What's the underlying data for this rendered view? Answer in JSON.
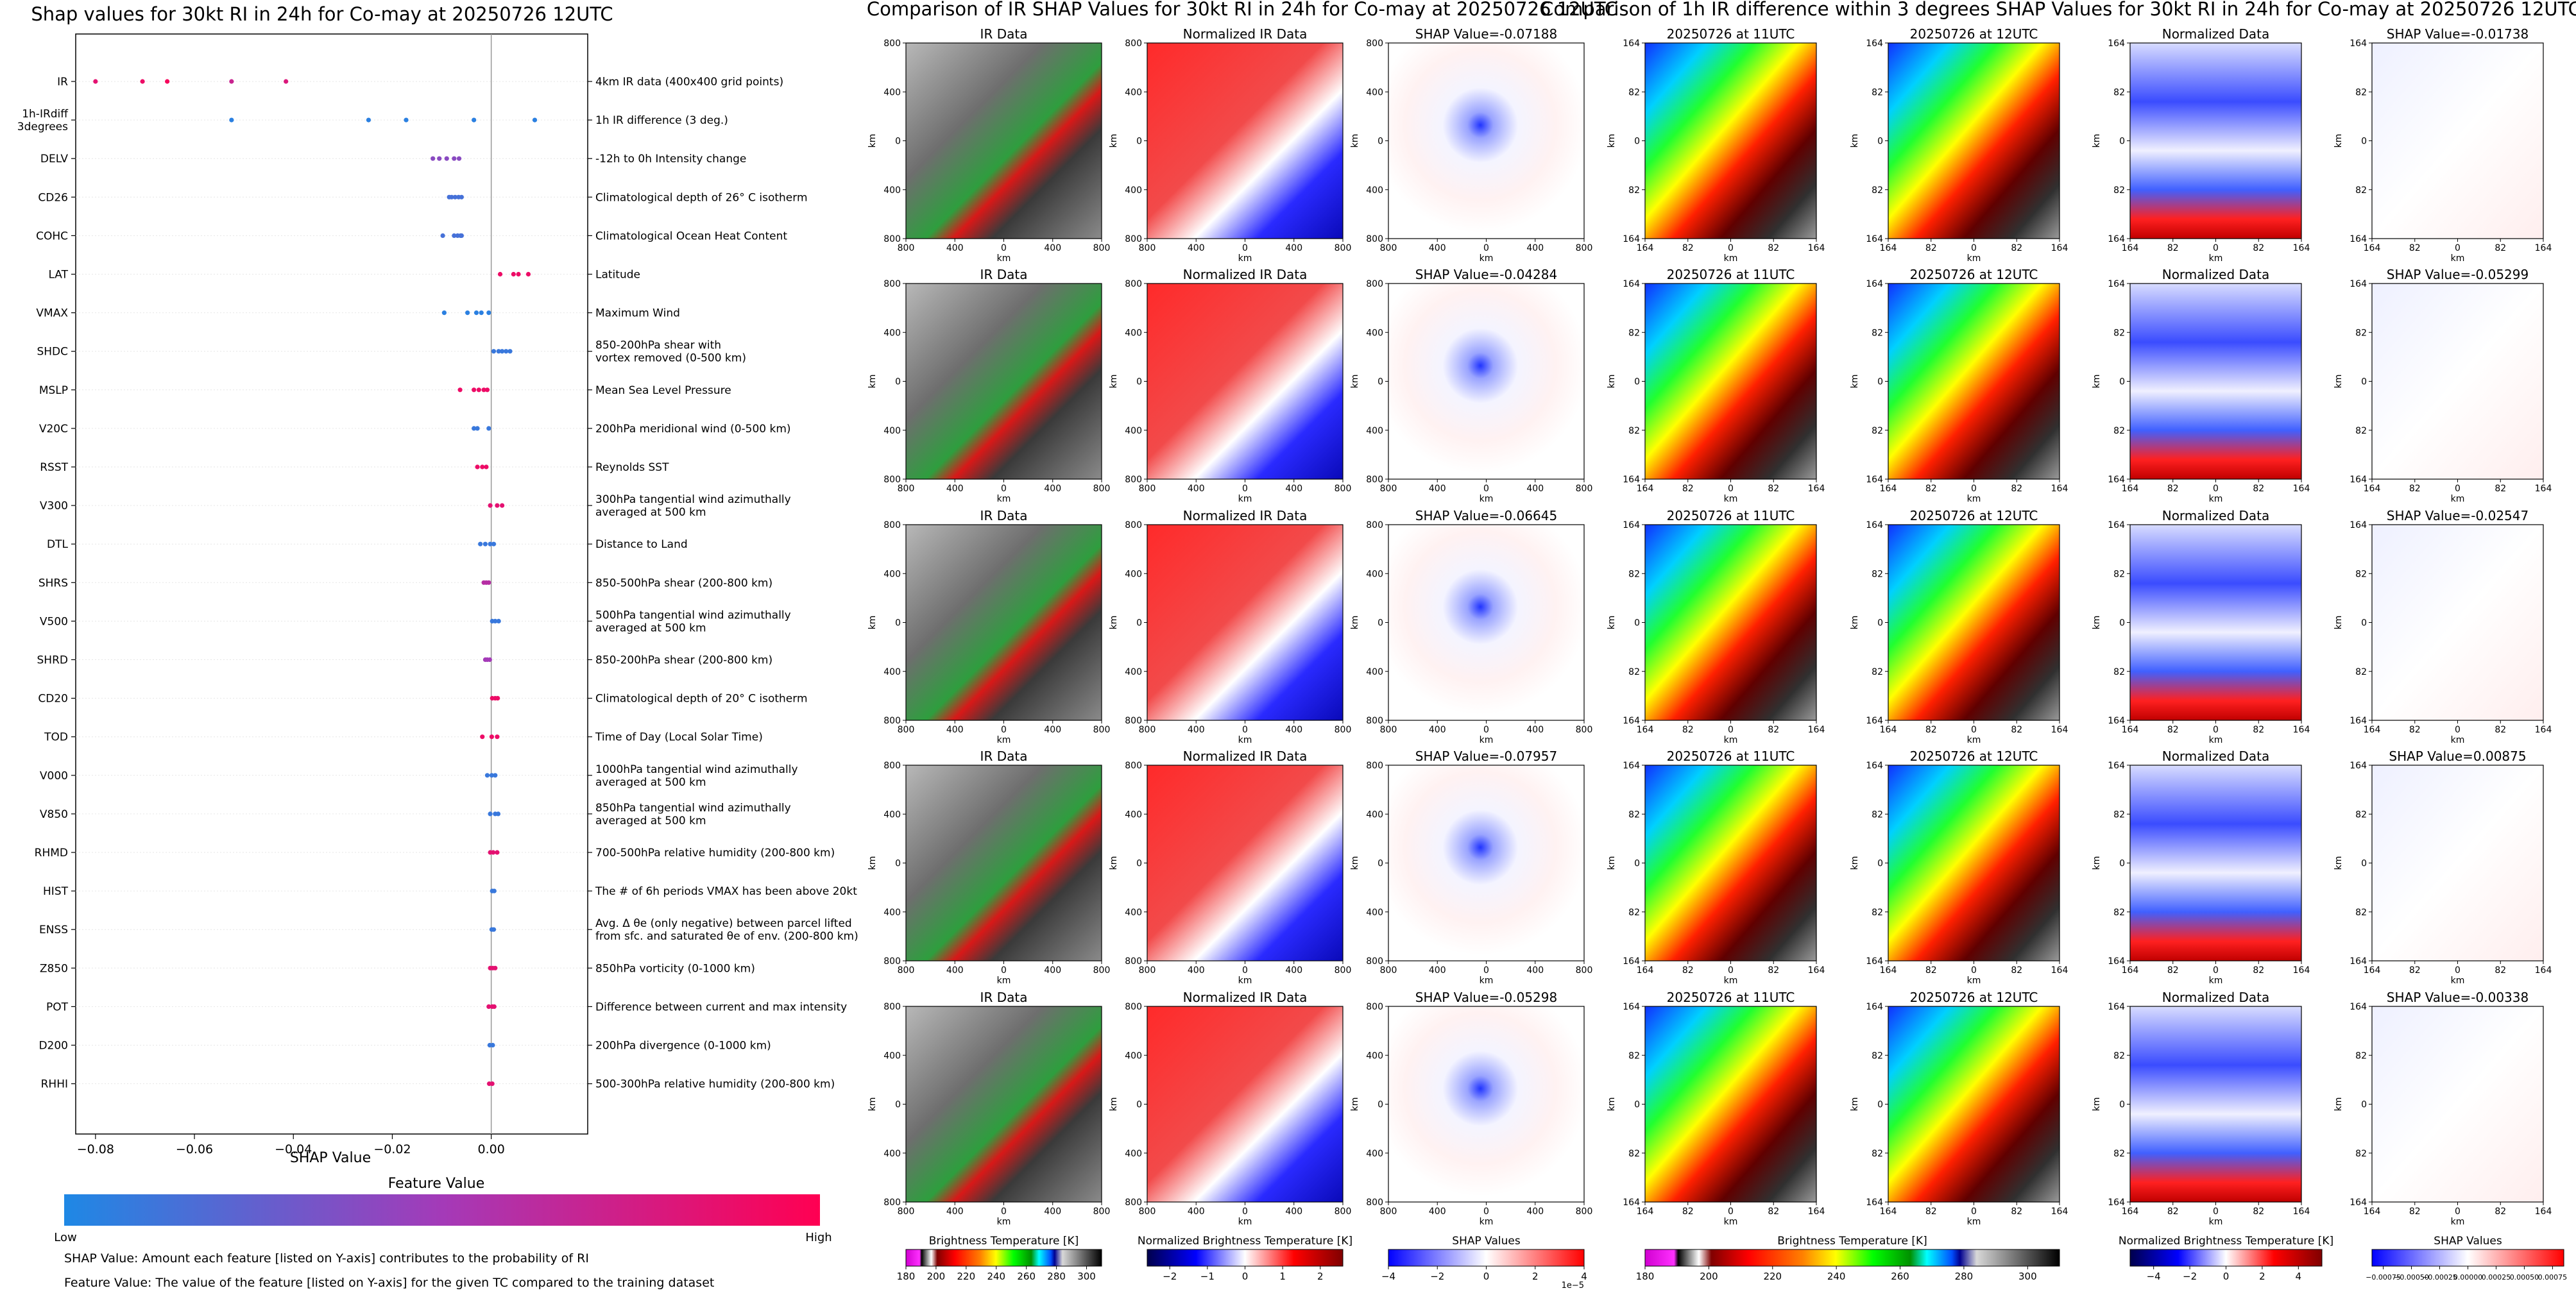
{
  "summary": {
    "title": "Shap values for 30kt RI in 24h for Co-may at 20250726 12UTC",
    "xlabel": "SHAP Value",
    "xticks": [
      -0.08,
      -0.06,
      -0.04,
      -0.02,
      0.0
    ],
    "xtick_labels": [
      "−0.08",
      "−0.06",
      "−0.04",
      "−0.02",
      "0.00"
    ],
    "xlim": [
      -0.084,
      0.0195
    ],
    "colorbar_title": "Feature Value",
    "colorbar_low": "Low",
    "colorbar_high": "High",
    "colors": {
      "low": "#1e88e5",
      "mid": "#a43ab8",
      "high": "#ff0052"
    },
    "note1": "SHAP Value: Amount each feature [listed on Y-axis] contributes to the probability of RI",
    "note2": "Feature Value: The value of the feature [listed on Y-axis] for the given TC compared to the training dataset"
  },
  "chart_data": [
    {
      "type": "scatter",
      "name": "shap-summary",
      "features": [
        {
          "label": "IR",
          "description": "4km IR data (400x400 grid points)",
          "points": [
            [
              -0.08,
              0.85
            ],
            [
              -0.0705,
              0.9
            ],
            [
              -0.0655,
              0.95
            ],
            [
              -0.0525,
              0.7
            ],
            [
              -0.0415,
              0.8
            ]
          ]
        },
        {
          "label": "1h-IRdiff\n3degrees",
          "description": "1h IR difference (3 deg.)",
          "points": [
            [
              -0.0525,
              0.05
            ],
            [
              -0.0248,
              0.05
            ],
            [
              -0.0172,
              0.05
            ],
            [
              -0.0035,
              0.05
            ],
            [
              0.0088,
              0.05
            ]
          ]
        },
        {
          "label": "DELV",
          "description": "-12h to 0h Intensity change",
          "points": [
            [
              -0.0118,
              0.4
            ],
            [
              -0.0105,
              0.4
            ],
            [
              -0.009,
              0.4
            ],
            [
              -0.0075,
              0.4
            ],
            [
              -0.0065,
              0.4
            ]
          ]
        },
        {
          "label": "CD26",
          "description": "Climatological depth of 26° C isotherm",
          "points": [
            [
              -0.0085,
              0.15
            ],
            [
              -0.008,
              0.15
            ],
            [
              -0.0073,
              0.15
            ],
            [
              -0.0066,
              0.15
            ],
            [
              -0.006,
              0.15
            ]
          ]
        },
        {
          "label": "COHC",
          "description": "Climatological Ocean Heat Content",
          "points": [
            [
              -0.0098,
              0.15
            ],
            [
              -0.0075,
              0.15
            ],
            [
              -0.0068,
              0.15
            ],
            [
              -0.0062,
              0.15
            ],
            [
              -0.006,
              0.15
            ]
          ]
        },
        {
          "label": "LAT",
          "description": "Latitude",
          "points": [
            [
              0.0018,
              0.9
            ],
            [
              0.0045,
              0.9
            ],
            [
              0.0055,
              0.9
            ],
            [
              0.0075,
              0.9
            ]
          ]
        },
        {
          "label": "VMAX",
          "description": "Maximum Wind",
          "points": [
            [
              -0.0095,
              0.05
            ],
            [
              -0.0048,
              0.05
            ],
            [
              -0.003,
              0.05
            ],
            [
              -0.002,
              0.05
            ],
            [
              -0.0005,
              0.05
            ]
          ]
        },
        {
          "label": "SHDC",
          "description": "850-200hPa shear with\nvortex removed (0-500 km)",
          "points": [
            [
              0.0005,
              0.1
            ],
            [
              0.0015,
              0.1
            ],
            [
              0.0022,
              0.1
            ],
            [
              0.003,
              0.1
            ],
            [
              0.0038,
              0.1
            ]
          ]
        },
        {
          "label": "MSLP",
          "description": "Mean Sea Level Pressure",
          "points": [
            [
              -0.0063,
              0.9
            ],
            [
              -0.0035,
              0.9
            ],
            [
              -0.0025,
              0.9
            ],
            [
              -0.0015,
              0.9
            ],
            [
              -0.0008,
              0.9
            ]
          ]
        },
        {
          "label": "V20C",
          "description": "200hPa meridional wind (0-500 km)",
          "points": [
            [
              -0.0035,
              0.1
            ],
            [
              -0.0028,
              0.1
            ],
            [
              -0.0005,
              0.1
            ]
          ]
        },
        {
          "label": "RSST",
          "description": "Reynolds SST",
          "points": [
            [
              -0.0028,
              0.9
            ],
            [
              -0.0018,
              0.9
            ],
            [
              -0.001,
              0.9
            ]
          ]
        },
        {
          "label": "V300",
          "description": "300hPa tangential wind azimuthally\naveraged at 500 km",
          "points": [
            [
              -0.0002,
              0.85
            ],
            [
              0.0012,
              0.85
            ],
            [
              0.0022,
              0.85
            ]
          ]
        },
        {
          "label": "DTL",
          "description": "Distance to Land",
          "points": [
            [
              -0.0022,
              0.1
            ],
            [
              -0.0012,
              0.1
            ],
            [
              -0.0002,
              0.1
            ],
            [
              0.0005,
              0.1
            ]
          ]
        },
        {
          "label": "SHRS",
          "description": "850-500hPa shear (200-800 km)",
          "points": [
            [
              -0.0015,
              0.6
            ],
            [
              -0.001,
              0.6
            ],
            [
              -0.0005,
              0.6
            ]
          ]
        },
        {
          "label": "V500",
          "description": "500hPa tangential wind azimuthally\naveraged at 500 km",
          "points": [
            [
              0.0002,
              0.1
            ],
            [
              0.0008,
              0.1
            ],
            [
              0.0015,
              0.1
            ]
          ]
        },
        {
          "label": "SHRD",
          "description": "850-200hPa shear (200-800 km)",
          "points": [
            [
              -0.0012,
              0.5
            ],
            [
              -0.0008,
              0.5
            ],
            [
              -0.0003,
              0.5
            ]
          ]
        },
        {
          "label": "CD20",
          "description": "Climatological depth of 20° C isotherm",
          "points": [
            [
              0.0002,
              0.9
            ],
            [
              0.0008,
              0.9
            ],
            [
              0.0013,
              0.9
            ]
          ]
        },
        {
          "label": "TOD",
          "description": "Time of Day (Local Solar Time)",
          "points": [
            [
              -0.0018,
              0.9
            ],
            [
              0.0001,
              0.9
            ],
            [
              0.0012,
              0.9
            ]
          ]
        },
        {
          "label": "V000",
          "description": "1000hPa tangential wind azimuthally\naveraged at 500 km",
          "points": [
            [
              -0.0008,
              0.1
            ],
            [
              0.0001,
              0.1
            ],
            [
              0.0008,
              0.1
            ]
          ]
        },
        {
          "label": "V850",
          "description": "850hPa tangential wind azimuthally\naveraged at 500 km",
          "points": [
            [
              -0.0002,
              0.1
            ],
            [
              0.0008,
              0.1
            ],
            [
              0.0014,
              0.1
            ]
          ]
        },
        {
          "label": "RHMD",
          "description": "700-500hPa relative humidity (200-800 km)",
          "points": [
            [
              -0.0002,
              0.85
            ],
            [
              0.0004,
              0.85
            ],
            [
              0.0012,
              0.85
            ]
          ]
        },
        {
          "label": "HIST",
          "description": "The # of 6h periods VMAX has been above 20kt",
          "points": [
            [
              0.0002,
              0.1
            ],
            [
              0.0006,
              0.1
            ]
          ]
        },
        {
          "label": "ENSS",
          "description": "Avg. Δ θe (only negative) between parcel lifted\nfrom sfc. and saturated θe of env. (200-800 km)",
          "points": [
            [
              0.0001,
              0.1
            ],
            [
              0.0005,
              0.1
            ]
          ]
        },
        {
          "label": "Z850",
          "description": "850hPa vorticity (0-1000 km)",
          "points": [
            [
              -0.0002,
              0.85
            ],
            [
              0.0003,
              0.85
            ],
            [
              0.0008,
              0.85
            ]
          ]
        },
        {
          "label": "POT",
          "description": "Difference between current and max intensity",
          "points": [
            [
              -0.0005,
              0.85
            ],
            [
              0.0002,
              0.85
            ],
            [
              0.0006,
              0.85
            ]
          ]
        },
        {
          "label": "D200",
          "description": "200hPa divergence (0-1000 km)",
          "points": [
            [
              -0.0003,
              0.1
            ],
            [
              0.0003,
              0.1
            ]
          ]
        },
        {
          "label": "RHHI",
          "description": "500-300hPa relative humidity (200-800 km)",
          "points": [
            [
              -0.0004,
              0.85
            ],
            [
              0.0002,
              0.85
            ]
          ]
        }
      ]
    },
    {
      "type": "heatmap",
      "name": "ir-shap-grid",
      "title": "Comparison of IR SHAP Values for 30kt RI in 24h for Co-may at 20250726 12UTC",
      "axis_label": "km",
      "ticks": [
        "800",
        "400",
        "0",
        "400",
        "800"
      ],
      "columns": [
        "IR Data",
        "Normalized IR Data",
        "SHAP Value"
      ],
      "shap_values": [
        "-0.07188",
        "-0.04284",
        "-0.06645",
        "-0.07957",
        "-0.05298"
      ],
      "colorbars": [
        {
          "label": "Brightness Temperature [K]",
          "ticks": [
            "180",
            "200",
            "220",
            "240",
            "260",
            "280",
            "300"
          ],
          "range": [
            180,
            310
          ]
        },
        {
          "label": "Normalized Brightness Temperature [K]",
          "ticks": [
            "−2",
            "−1",
            "0",
            "1",
            "2"
          ],
          "range": [
            -2.6,
            2.6
          ]
        },
        {
          "label": "SHAP Values",
          "ticks": [
            "−4",
            "−2",
            "0",
            "2",
            "4"
          ],
          "range": [
            -4,
            4
          ],
          "scale_note": "1e−5"
        }
      ]
    },
    {
      "type": "heatmap",
      "name": "ir-diff-shap-grid",
      "title": "Comparison of 1h IR difference within 3 degrees SHAP Values for 30kt RI in 24h for Co-may at 20250726 12UTC",
      "axis_label": "km",
      "ticks": [
        "164",
        "82",
        "0",
        "82",
        "164"
      ],
      "columns": [
        "20250726 at 11UTC",
        "20250726 at 12UTC",
        "Normalized Data",
        "SHAP Value"
      ],
      "shap_values": [
        "-0.01738",
        "-0.05299",
        "-0.02547",
        "0.00875",
        "-0.00338"
      ],
      "colorbars": [
        {
          "label": "Brightness Temperature [K]",
          "ticks": [
            "180",
            "200",
            "220",
            "240",
            "260",
            "280",
            "300"
          ],
          "range": [
            180,
            310
          ]
        },
        {
          "label": "Normalized Brightness Temperature [K]",
          "ticks": [
            "−4",
            "−2",
            "0",
            "2",
            "4"
          ],
          "range": [
            -5.3,
            5.3
          ]
        },
        {
          "label": "SHAP Values",
          "ticks": [
            "−0.00075",
            "−0.00050",
            "−0.00025",
            "0.00000",
            "0.00025",
            "0.00050",
            "0.00075"
          ],
          "range": [
            -0.00085,
            0.00085
          ]
        }
      ]
    }
  ]
}
